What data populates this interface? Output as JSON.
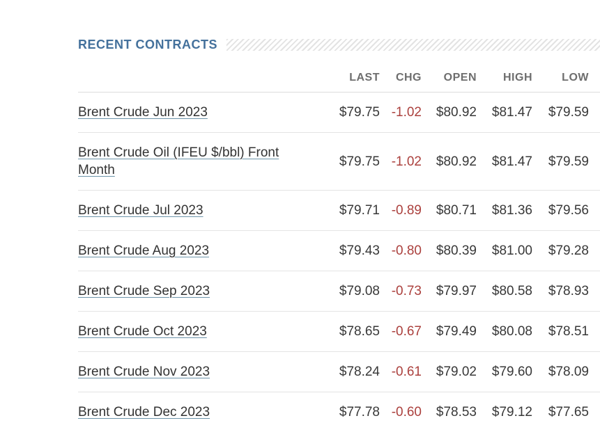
{
  "section": {
    "title": "RECENT CONTRACTS"
  },
  "table": {
    "headers": {
      "name": "",
      "last": "LAST",
      "chg": "CHG",
      "open": "OPEN",
      "high": "HIGH",
      "low": "LOW"
    },
    "rows": [
      {
        "name": "Brent Crude Jun 2023",
        "last": "$79.75",
        "chg": "-1.02",
        "open": "$80.92",
        "high": "$81.47",
        "low": "$79.59"
      },
      {
        "name": "Brent Crude Oil (IFEU $/bbl) Front Month",
        "last": "$79.75",
        "chg": "-1.02",
        "open": "$80.92",
        "high": "$81.47",
        "low": "$79.59"
      },
      {
        "name": "Brent Crude Jul 2023",
        "last": "$79.71",
        "chg": "-0.89",
        "open": "$80.71",
        "high": "$81.36",
        "low": "$79.56"
      },
      {
        "name": "Brent Crude Aug 2023",
        "last": "$79.43",
        "chg": "-0.80",
        "open": "$80.39",
        "high": "$81.00",
        "low": "$79.28"
      },
      {
        "name": "Brent Crude Sep 2023",
        "last": "$79.08",
        "chg": "-0.73",
        "open": "$79.97",
        "high": "$80.58",
        "low": "$78.93"
      },
      {
        "name": "Brent Crude Oct 2023",
        "last": "$78.65",
        "chg": "-0.67",
        "open": "$79.49",
        "high": "$80.08",
        "low": "$78.51"
      },
      {
        "name": "Brent Crude Nov 2023",
        "last": "$78.24",
        "chg": "-0.61",
        "open": "$79.02",
        "high": "$79.60",
        "low": "$78.09"
      },
      {
        "name": "Brent Crude Dec 2023",
        "last": "$77.78",
        "chg": "-0.60",
        "open": "$78.53",
        "high": "$79.12",
        "low": "$77.65"
      }
    ]
  },
  "colors": {
    "title": "#44719c",
    "header_text": "#6e6e6e",
    "body_text": "#383838",
    "negative_change": "#ab403d",
    "link_underline": "#6d94aa",
    "row_border": "#e4e4e4",
    "header_border": "#dcdcdc",
    "hatch_stripe": "#e3e3e3"
  }
}
